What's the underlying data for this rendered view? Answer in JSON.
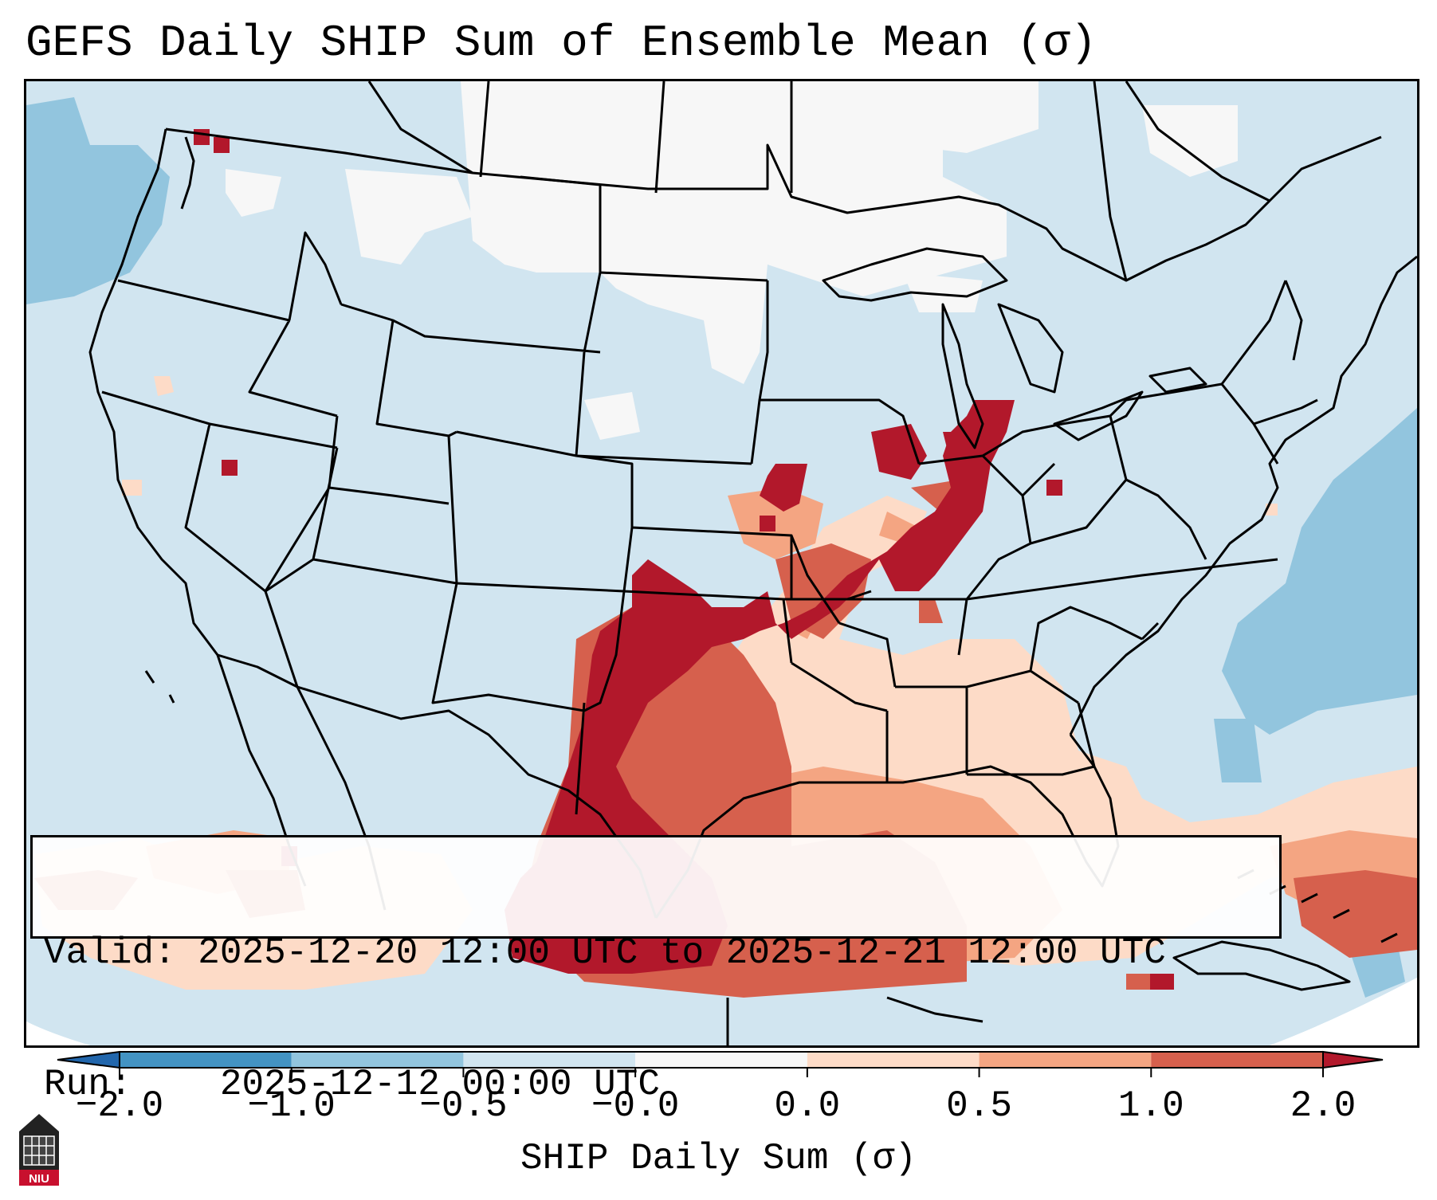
{
  "title": "GEFS Daily SHIP Sum of Ensemble Mean (σ)",
  "info": {
    "valid_label": "Valid:",
    "valid_value": "2025-12-20 12:00 UTC to 2025-12-21 12:00 UTC",
    "run_label": "Run:",
    "run_value": "2025-12-12 00:00 UTC"
  },
  "colorbar": {
    "label": "SHIP Daily Sum (σ)",
    "ticks": [
      "−2.0",
      "−1.0",
      "−0.5",
      "−0.0",
      "0.0",
      "0.5",
      "1.0",
      "2.0"
    ],
    "colors": [
      "#4393c3",
      "#92c5de",
      "#d1e5f0",
      "#f7f7f7",
      "#fddbc7",
      "#f4a582",
      "#d6604d",
      "#b2182b"
    ],
    "extend_low_color": "#2166ac",
    "extend_high_color": "#b2182b"
  },
  "logo": {
    "text": "NIU",
    "icon": "niu-building-icon"
  },
  "map": {
    "background_color": "#d1e5f0",
    "outside_color": "#ffffff",
    "coastline_color": "#000000"
  }
}
